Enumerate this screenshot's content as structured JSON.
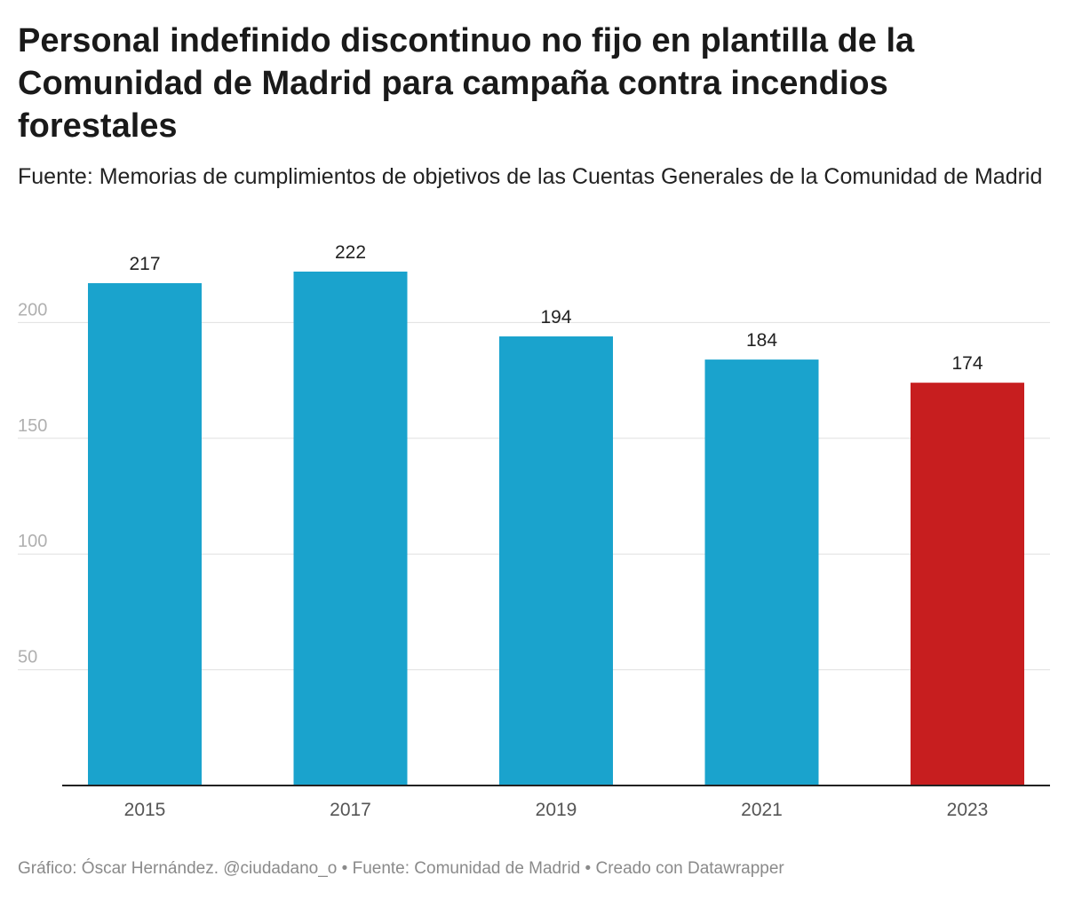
{
  "title": "Personal indefinido discontinuo no fijo en plantilla de la Comunidad de Madrid para campaña contra incendios forestales",
  "subtitle": "Fuente: Memorias de cumplimientos de objetivos de las Cuentas Generales de la Comunidad de Madrid",
  "footer": {
    "credit": "Gráfico: Óscar Hernández. @ciudadano_o",
    "source": "Fuente: Comunidad de Madrid",
    "tool": "Creado con Datawrapper",
    "separator": " • "
  },
  "colors": {
    "bar_default": "#1aa3cd",
    "bar_highlight": "#c71e1f",
    "grid": "#e0e0e0",
    "axis": "#222222",
    "tick_label": "#b0b0b0",
    "category_label": "#555555",
    "value_label": "#222222"
  },
  "chart_data": {
    "type": "bar",
    "title": "Personal indefinido discontinuo no fijo en plantilla de la Comunidad de Madrid para campaña contra incendios forestales",
    "xlabel": "",
    "ylabel": "",
    "categories": [
      "2015",
      "2017",
      "2019",
      "2021",
      "2023"
    ],
    "values": [
      217,
      222,
      194,
      184,
      174
    ],
    "highlight": [
      "2023"
    ],
    "ylim": [
      0,
      222
    ],
    "yticks": [
      50,
      100,
      150,
      200
    ],
    "grid": true,
    "legend": "none"
  }
}
